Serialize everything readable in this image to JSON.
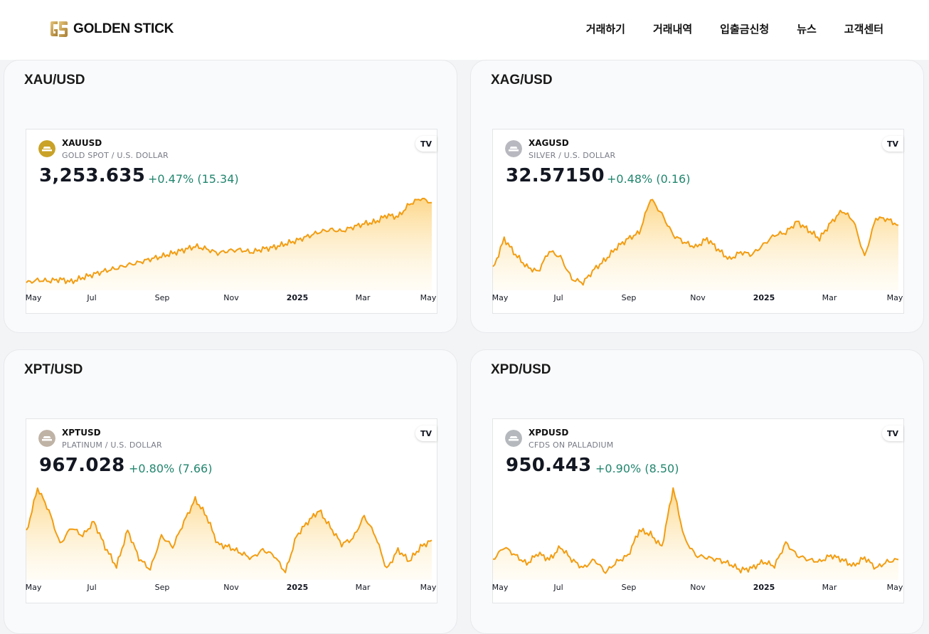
{
  "header": {
    "brand": "GOLDEN STICK",
    "nav": [
      "거래하기",
      "거래내역",
      "입출금신청",
      "뉴스",
      "고객센터"
    ]
  },
  "tradingview_logo": "TV",
  "cards": [
    {
      "title": "XAU/USD",
      "symbol": "XAUUSD",
      "description": "GOLD SPOT / U.S. DOLLAR",
      "price": "3,253.635",
      "change": "+0.47% (15.34)",
      "icon_color": "#c9a227"
    },
    {
      "title": "XAG/USD",
      "symbol": "XAGUSD",
      "description": "SILVER / U.S. DOLLAR",
      "price": "32.57150",
      "change": "+0.48% (0.16)",
      "icon_color": "#b8b8c0"
    },
    {
      "title": "XPT/USD",
      "symbol": "XPTUSD",
      "description": "PLATINUM / U.S. DOLLAR",
      "price": "967.028",
      "change": "+0.80% (7.66)",
      "icon_color": "#bfb3a6"
    },
    {
      "title": "XPD/USD",
      "symbol": "XPDUSD",
      "description": "CFDS ON PALLADIUM",
      "price": "950.443",
      "change": "+0.90% (8.50)",
      "icon_color": "#b5b9bd"
    }
  ],
  "chart_data": [
    {
      "type": "area",
      "series": [
        {
          "values": [
            2300,
            2330,
            2320,
            2340,
            2310,
            2360,
            2400,
            2440,
            2470,
            2510,
            2540,
            2580,
            2610,
            2650,
            2690,
            2730,
            2700,
            2650,
            2680,
            2690,
            2660,
            2700,
            2720,
            2760,
            2800,
            2850,
            2900,
            2930,
            2910,
            2960,
            3000,
            3020,
            3100,
            3080,
            3230,
            3300,
            3250
          ]
        }
      ],
      "x_ticks": [
        "May",
        "Jul",
        "Sep",
        "Nov",
        "2025",
        "Mar",
        "May"
      ],
      "line_color": "#f29d12",
      "grid": false
    },
    {
      "type": "area",
      "series": [
        {
          "values": [
            29.0,
            31.5,
            30.2,
            29.2,
            28.8,
            30.5,
            30.0,
            28.2,
            27.9,
            29.0,
            29.8,
            30.8,
            31.5,
            32.0,
            34.8,
            33.5,
            31.8,
            31.2,
            30.8,
            31.5,
            30.6,
            29.8,
            30.4,
            30.2,
            31.0,
            31.8,
            32.0,
            32.9,
            32.2,
            31.5,
            32.8,
            33.8,
            33.0,
            30.0,
            33.2,
            33.1,
            32.6
          ]
        }
      ],
      "x_ticks": [
        "May",
        "Jul",
        "Sep",
        "Nov",
        "2025",
        "Mar",
        "May"
      ],
      "line_color": "#f29d12",
      "grid": false
    },
    {
      "type": "area",
      "series": [
        {
          "values": [
            980,
            1060,
            1020,
            960,
            990,
            975,
            1000,
            955,
            920,
            985,
            935,
            915,
            975,
            955,
            1000,
            1040,
            1010,
            960,
            955,
            945,
            935,
            950,
            940,
            910,
            975,
            1000,
            1020,
            990,
            960,
            970,
            1010,
            975,
            915,
            950,
            930,
            955,
            967
          ]
        }
      ],
      "x_ticks": [
        "May",
        "Jul",
        "Sep",
        "Nov",
        "2025",
        "Mar",
        "May"
      ],
      "line_color": "#f29d12",
      "grid": false
    },
    {
      "type": "area",
      "series": [
        {
          "values": [
            950,
            980,
            960,
            940,
            965,
            950,
            980,
            950,
            930,
            950,
            920,
            945,
            960,
            1020,
            1010,
            980,
            1120,
            1000,
            960,
            955,
            950,
            940,
            925,
            930,
            945,
            935,
            990,
            960,
            950,
            945,
            960,
            950,
            935,
            955,
            930,
            945,
            950
          ]
        }
      ],
      "x_ticks": [
        "May",
        "Jul",
        "Sep",
        "Nov",
        "2025",
        "Mar",
        "May"
      ],
      "line_color": "#f29d12",
      "grid": false
    }
  ]
}
